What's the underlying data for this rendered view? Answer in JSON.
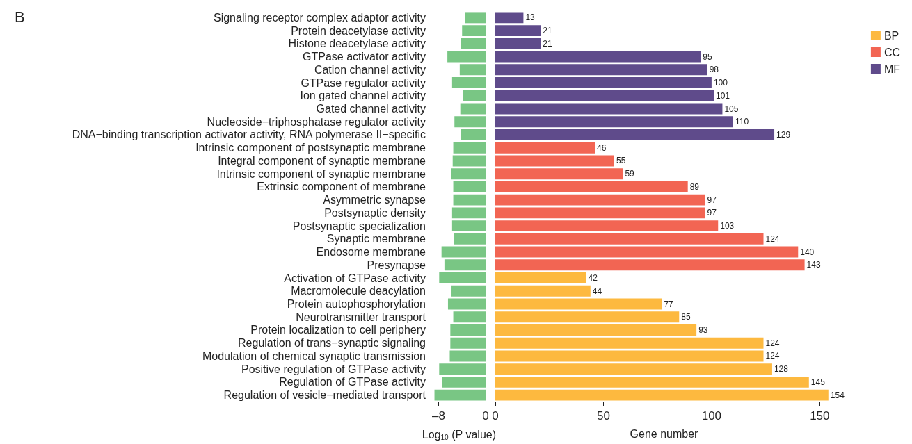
{
  "chart_data": [
    {
      "type": "bar",
      "orientation": "horizontal",
      "title": "B",
      "xlabel": "Log$_{10}$ (P value)",
      "categories": [
        "Signaling receptor complex adaptor activity",
        "Protein deacetylase activity",
        "Histone deacetylase activity",
        "GTPase activator activity",
        "Cation channel activity",
        "GTPase regulator activity",
        "Ion gated channel activity",
        "Gated channel activity",
        "Nucleoside−triphosphatase regulator activity",
        "DNA−binding transcription activator activity, RNA polymerase II−specific",
        "Intrinsic component of postsynaptic membrane",
        "Integral component of synaptic membrane",
        "Intrinsic component of synaptic membrane",
        "Extrinsic component of membrane",
        "Asymmetric synapse",
        "Postsynaptic density",
        "Postsynaptic specialization",
        "Synaptic membrane",
        "Endosome membrane",
        "Presynapse",
        "Activation of GTPase activity",
        "Macromolecule deacylation",
        "Protein autophosphorylation",
        "Neurotransmitter transport",
        "Protein localization to cell periphery",
        "Regulation of trans−synaptic signaling",
        "Modulation of chemical synaptic transmission",
        "Positive regulation of GTPase activity",
        "Regulation of GTPase activity",
        "Regulation of vesicle−mediated transport"
      ],
      "values": [
        -3.5,
        -4.0,
        -4.2,
        -6.5,
        -4.4,
        -5.7,
        -3.9,
        -4.3,
        -5.3,
        -4.2,
        -5.5,
        -5.6,
        -5.9,
        -5.5,
        -5.5,
        -5.7,
        -5.7,
        -5.4,
        -7.5,
        -7.0,
        -7.9,
        -5.8,
        -6.4,
        -5.5,
        -6.0,
        -6.0,
        -6.1,
        -7.9,
        -7.4,
        -8.7
      ],
      "color": "#79c684",
      "xlim": [
        -9,
        0
      ],
      "xticks": [
        {
          "value": -8,
          "label": "–8"
        },
        0
      ],
      "grid": false,
      "legend": false
    },
    {
      "type": "bar",
      "orientation": "horizontal",
      "xlabel": "Gene number",
      "data_labels": true,
      "categories": [
        null,
        null,
        null,
        null,
        null,
        null,
        null,
        null,
        null,
        null,
        null,
        null,
        null,
        null,
        null,
        null,
        null,
        null,
        null,
        null,
        null,
        null,
        null,
        null,
        null,
        null,
        null,
        null,
        null,
        null
      ],
      "series": [
        {
          "name": "BP",
          "color": "#fdb93f",
          "values": [
            null,
            null,
            null,
            null,
            null,
            null,
            null,
            null,
            null,
            null,
            null,
            null,
            null,
            null,
            null,
            null,
            null,
            null,
            null,
            null,
            42,
            44,
            77,
            85,
            93,
            124,
            124,
            128,
            145,
            154
          ]
        },
        {
          "name": "CC",
          "color": "#f26553",
          "values": [
            null,
            null,
            null,
            null,
            null,
            null,
            null,
            null,
            null,
            null,
            46,
            55,
            59,
            89,
            97,
            97,
            103,
            124,
            140,
            143,
            null,
            null,
            null,
            null,
            null,
            null,
            null,
            null,
            null,
            null
          ]
        },
        {
          "name": "MF",
          "color": "#5f4b8b",
          "values": [
            13,
            21,
            21,
            95,
            98,
            100,
            101,
            105,
            110,
            129,
            null,
            null,
            null,
            null,
            null,
            null,
            null,
            null,
            null,
            null,
            null,
            null,
            null,
            null,
            null,
            null,
            null,
            null,
            null,
            null
          ]
        }
      ],
      "xlim": [
        0,
        156
      ],
      "xticks": [
        0,
        50,
        100,
        150
      ],
      "grid": false,
      "legend": "right"
    }
  ]
}
